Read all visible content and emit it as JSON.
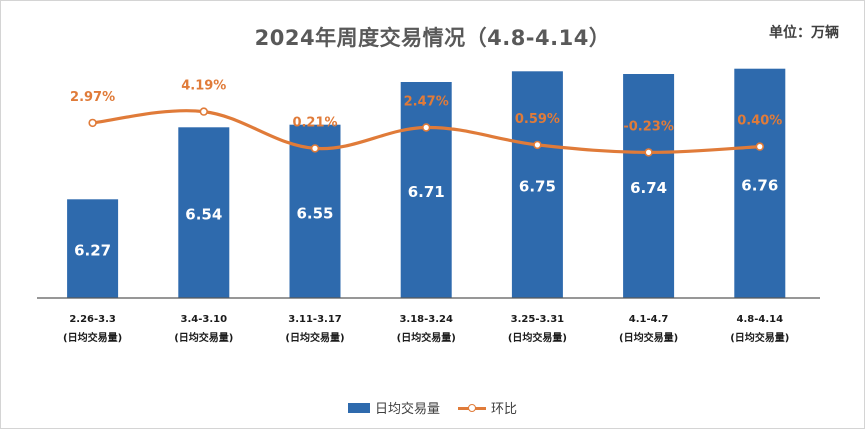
{
  "header": {
    "title": "2024年周度交易情况（4.8-4.14）",
    "unit": "单位：万辆"
  },
  "colors": {
    "bar": "#2e6aad",
    "line": "#e07b39",
    "bar_label": "#ffffff",
    "pct_label": "#e07b39",
    "axis_label": "#1a1a1a"
  },
  "chart_data": {
    "type": "bar",
    "title": "2024年周度交易情况（4.8-4.14）",
    "unit": "单位：万辆",
    "categories": [
      [
        "2.26-3.3",
        "(日均交易量)"
      ],
      [
        "3.4-3.10",
        "(日均交易量)"
      ],
      [
        "3.11-3.17",
        "(日均交易量)"
      ],
      [
        "3.18-3.24",
        "(日均交易量)"
      ],
      [
        "3.25-3.31",
        "(日均交易量)"
      ],
      [
        "4.1-4.7",
        "(日均交易量)"
      ],
      [
        "4.8-4.14",
        "(日均交易量)"
      ]
    ],
    "series": [
      {
        "name": "日均交易量",
        "type": "bar",
        "values": [
          6.27,
          6.54,
          6.55,
          6.71,
          6.75,
          6.74,
          6.76
        ],
        "labels": [
          "6.27",
          "6.54",
          "6.55",
          "6.71",
          "6.75",
          "6.74",
          "6.76"
        ]
      },
      {
        "name": "环比",
        "type": "line",
        "values": [
          2.97,
          4.19,
          0.21,
          2.47,
          0.59,
          -0.23,
          0.4
        ],
        "labels": [
          "2.97%",
          "4.19%",
          "0.21%",
          "2.47%",
          "0.59%",
          "-0.23%",
          "0.40%"
        ]
      }
    ],
    "bar_axis_range": [
      5.9,
      6.8
    ],
    "line_axis_range": [
      -16,
      10
    ],
    "legend": [
      "日均交易量",
      "环比"
    ],
    "legend_position": "bottom"
  }
}
